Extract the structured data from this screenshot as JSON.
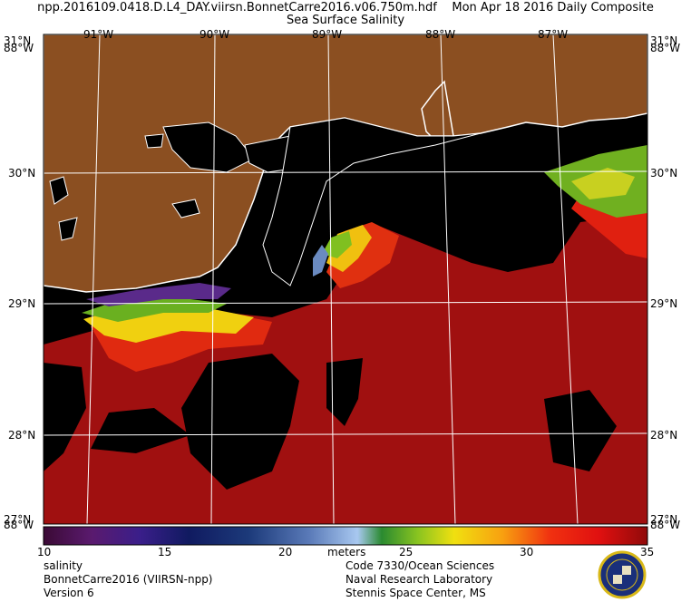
{
  "header": {
    "line1": "npp.2016109.0418.D.L4_DAY.viirsn.BonnetCarre2016.v06.750m.hdf    Mon Apr 18 2016 Daily Composite",
    "line2": "Sea Surface Salinity"
  },
  "map": {
    "top_labels": [
      "91°W",
      "90°W",
      "89°W",
      "88°W",
      "87°W"
    ],
    "bottom_labels": [
      "91°W",
      "90°W",
      "89°W",
      "88°W",
      "87°W"
    ],
    "left_labels": [
      "30°N",
      "29°N",
      "28°N"
    ],
    "right_labels": [
      "30°N",
      "29°N",
      "28°N"
    ],
    "corner_top_left": [
      "31°N",
      "88°W"
    ],
    "corner_top_right": [
      "31°N",
      "88°W"
    ],
    "corner_bottom_left": [
      "27°N",
      "88°W"
    ],
    "corner_bottom_right": [
      "27°N",
      "88°W"
    ],
    "colors": {
      "land": "#8b4f21",
      "water_nodata": "#000000",
      "coast": "#ffffff",
      "high_salinity": "#a01010"
    }
  },
  "colorbar": {
    "ticks": [
      "10",
      "15",
      "20",
      "25",
      "30",
      "35"
    ],
    "unit": "meters",
    "min": 10,
    "max": 35
  },
  "footer": {
    "left": [
      "salinity",
      "BonnetCarre2016 (VIIRSN-npp)",
      "Version 6"
    ],
    "right": [
      "Code 7330/Ocean Sciences",
      "Naval Research Laboratory",
      "Stennis Space Center, MS"
    ]
  }
}
